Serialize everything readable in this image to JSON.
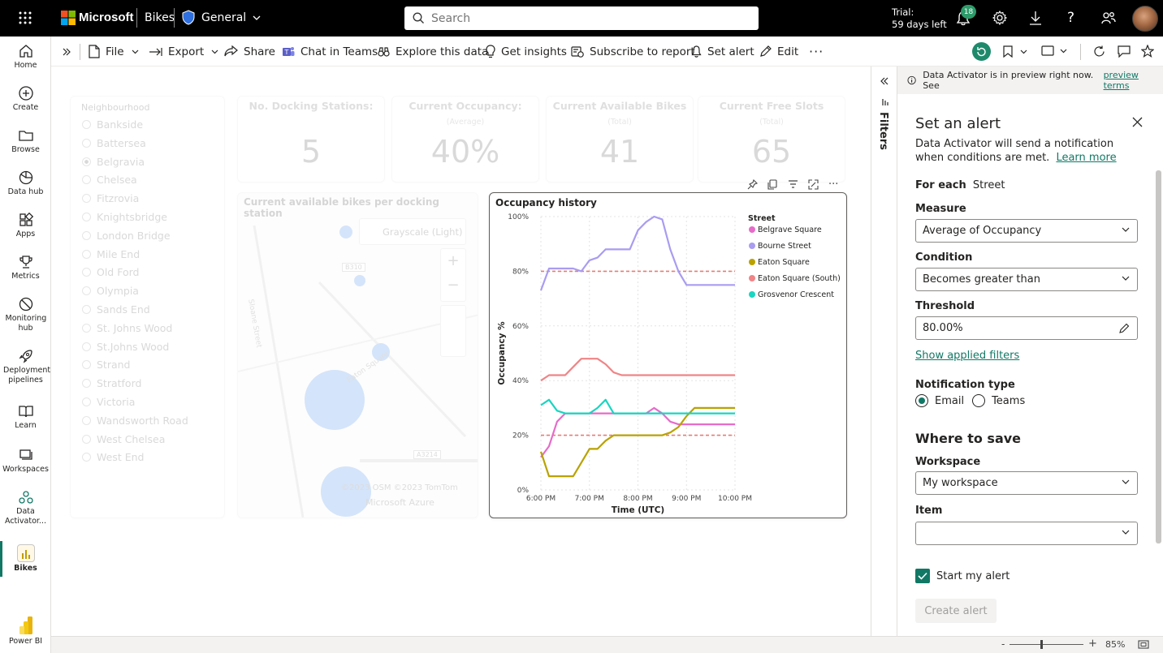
{
  "topbar": {
    "brand": "Microsoft",
    "app": "Bikes",
    "workspace": "General",
    "search_placeholder": "Search",
    "trial_line1": "Trial:",
    "trial_line2": "59 days left",
    "notif_count": "18"
  },
  "nav": [
    {
      "label": "Home",
      "icon": "home-icon"
    },
    {
      "label": "Create",
      "icon": "plus-circle-icon"
    },
    {
      "label": "Browse",
      "icon": "folder-icon"
    },
    {
      "label": "Data hub",
      "icon": "data-hub-icon"
    },
    {
      "label": "Apps",
      "icon": "apps-icon"
    },
    {
      "label": "Metrics",
      "icon": "trophy-icon"
    },
    {
      "label": "Monitoring hub",
      "icon": "monitoring-icon"
    },
    {
      "label": "Deployment pipelines",
      "icon": "rocket-icon"
    },
    {
      "label": "Learn",
      "icon": "book-icon"
    },
    {
      "label": "Workspaces",
      "icon": "workspaces-icon"
    },
    {
      "label": "Data Activator...",
      "icon": "data-activator-icon"
    },
    {
      "label": "Bikes",
      "icon": "report-icon"
    }
  ],
  "nav_footer": "Power BI",
  "toolbar": {
    "file": "File",
    "export": "Export",
    "share": "Share",
    "chat": "Chat in Teams",
    "explore": "Explore this data",
    "insights": "Get insights",
    "subscribe": "Subscribe to report",
    "alert": "Set alert",
    "edit": "Edit"
  },
  "slicer": {
    "title": "Neighbourhood",
    "items": [
      "Bankside",
      "Battersea",
      "Belgravia",
      "Chelsea",
      "Fitzrovia",
      "Knightsbridge",
      "London Bridge",
      "Mile End",
      "Old Ford",
      "Olympia",
      "Sands End",
      "St. Johns Wood",
      "St.Johns Wood",
      "Strand",
      "Stratford",
      "Victoria",
      "Wandsworth Road",
      "West Chelsea",
      "West End"
    ],
    "selected": "Belgravia"
  },
  "kpis": [
    {
      "title": "No. Docking Stations:",
      "sub": "",
      "value": "5"
    },
    {
      "title": "Current Occupancy:",
      "sub": "(Average)",
      "value": "40%"
    },
    {
      "title": "Current Available Bikes",
      "sub": "(Total)",
      "value": "41"
    },
    {
      "title": "Current Free Slots",
      "sub": "(Total)",
      "value": "65"
    }
  ],
  "map": {
    "title": "Current available bikes per docking station",
    "style_button": "Grayscale (Light)",
    "road1": "B310",
    "road2": "A3214",
    "street1": "Sloane Street",
    "street2": "Eaton Square",
    "attribution": "©2023 OSM  ©2023 TomTom",
    "provider": "Microsoft Azure"
  },
  "chart_data": {
    "type": "line",
    "title": "Occupancy history",
    "xlabel": "Time (UTC)",
    "ylabel": "Occupancy %",
    "legend_title": "Street",
    "x_ticks": [
      "6:00 PM",
      "7:00 PM",
      "8:00 PM",
      "9:00 PM",
      "10:00 PM"
    ],
    "y_ticks": [
      "0%",
      "20%",
      "40%",
      "60%",
      "80%",
      "100%"
    ],
    "ylim": [
      0,
      100
    ],
    "reference_lines": [
      80,
      20
    ],
    "x": [
      "6:00 PM",
      "6:10 PM",
      "6:20 PM",
      "6:30 PM",
      "6:40 PM",
      "6:50 PM",
      "7:00 PM",
      "7:10 PM",
      "7:20 PM",
      "7:30 PM",
      "7:40 PM",
      "7:50 PM",
      "8:00 PM",
      "8:10 PM",
      "8:20 PM",
      "8:30 PM",
      "8:40 PM",
      "8:50 PM",
      "9:00 PM",
      "9:10 PM",
      "9:20 PM",
      "9:30 PM",
      "9:40 PM",
      "9:50 PM",
      "10:00 PM"
    ],
    "series": [
      {
        "name": "Belgrave Square",
        "color": "#e66cc9",
        "values": [
          12,
          16,
          25,
          28,
          28,
          28,
          28,
          28,
          28,
          28,
          28,
          28,
          28,
          28,
          30,
          28,
          25,
          24,
          24,
          24,
          24,
          24,
          24,
          24,
          24
        ]
      },
      {
        "name": "Bourne Street",
        "color": "#a99cf1",
        "values": [
          73,
          81,
          81,
          81,
          81,
          80,
          84,
          85,
          88,
          88,
          88,
          88,
          95,
          98,
          100,
          99,
          88,
          80,
          75,
          75,
          75,
          75,
          75,
          75,
          75
        ]
      },
      {
        "name": "Eaton Square",
        "color": "#b9a200",
        "values": [
          14,
          5,
          5,
          5,
          5,
          10,
          15,
          15,
          18,
          20,
          20,
          20,
          20,
          20,
          20,
          20,
          21,
          23,
          27,
          30,
          30,
          30,
          30,
          30,
          30
        ]
      },
      {
        "name": "Eaton Square (South)",
        "color": "#f08486",
        "values": [
          40,
          42,
          42,
          42,
          45,
          48,
          48,
          48,
          46,
          43,
          42,
          42,
          42,
          42,
          42,
          42,
          42,
          42,
          42,
          42,
          42,
          42,
          42,
          42,
          42
        ]
      },
      {
        "name": "Grosvenor Crescent",
        "color": "#1ad5c1",
        "values": [
          31,
          33,
          29,
          28,
          28,
          28,
          28,
          30,
          33,
          28,
          28,
          28,
          28,
          28,
          28,
          28,
          28,
          28,
          28,
          28,
          28,
          28,
          28,
          28,
          28
        ]
      }
    ]
  },
  "filters_label": "Filters",
  "alert_panel": {
    "preview_notice": "Data Activator is in preview right now. See",
    "preview_link": "preview terms",
    "title": "Set an alert",
    "description": "Data Activator will send a notification when conditions are met.",
    "learn_more": "Learn more",
    "for_each_label": "For each",
    "for_each_value": "Street",
    "measure_label": "Measure",
    "measure_value": "Average of Occupancy",
    "condition_label": "Condition",
    "condition_value": "Becomes greater than",
    "threshold_label": "Threshold",
    "threshold_value": "80.00%",
    "show_filters": "Show applied filters",
    "notification_label": "Notification type",
    "email": "Email",
    "teams": "Teams",
    "where_to_save": "Where to save",
    "workspace_label": "Workspace",
    "workspace_value": "My workspace",
    "item_label": "Item",
    "item_value": "",
    "start_alert": "Start my alert",
    "create_button": "Create alert"
  },
  "statusbar": {
    "zoom": "85%"
  }
}
